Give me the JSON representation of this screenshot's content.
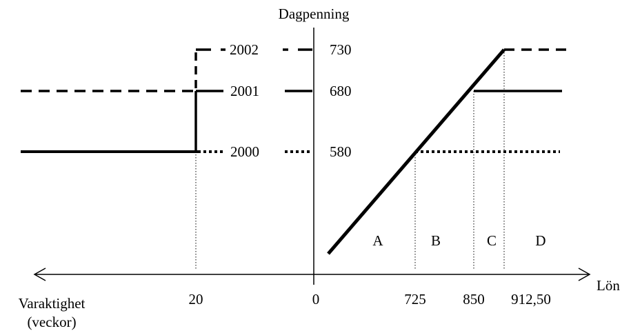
{
  "y_axis_label": "Dagpenning",
  "x_axis_label_right": "Lön",
  "x_axis_label_left_line1": "Varaktighet",
  "x_axis_label_left_line2": "(veckor)",
  "benefit_levels": [
    {
      "year": "2002",
      "amount": "730",
      "line_style": "dashed"
    },
    {
      "year": "2001",
      "amount": "680",
      "line_style": "solid"
    },
    {
      "year": "2000",
      "amount": "580",
      "line_style": "dotted"
    }
  ],
  "duration_ticks": [
    "20",
    "0"
  ],
  "wage_ticks": [
    "725",
    "850",
    "912,50"
  ],
  "regions": [
    "A",
    "B",
    "C",
    "D"
  ],
  "colors": {
    "ink": "#000000",
    "background": "#ffffff"
  }
}
